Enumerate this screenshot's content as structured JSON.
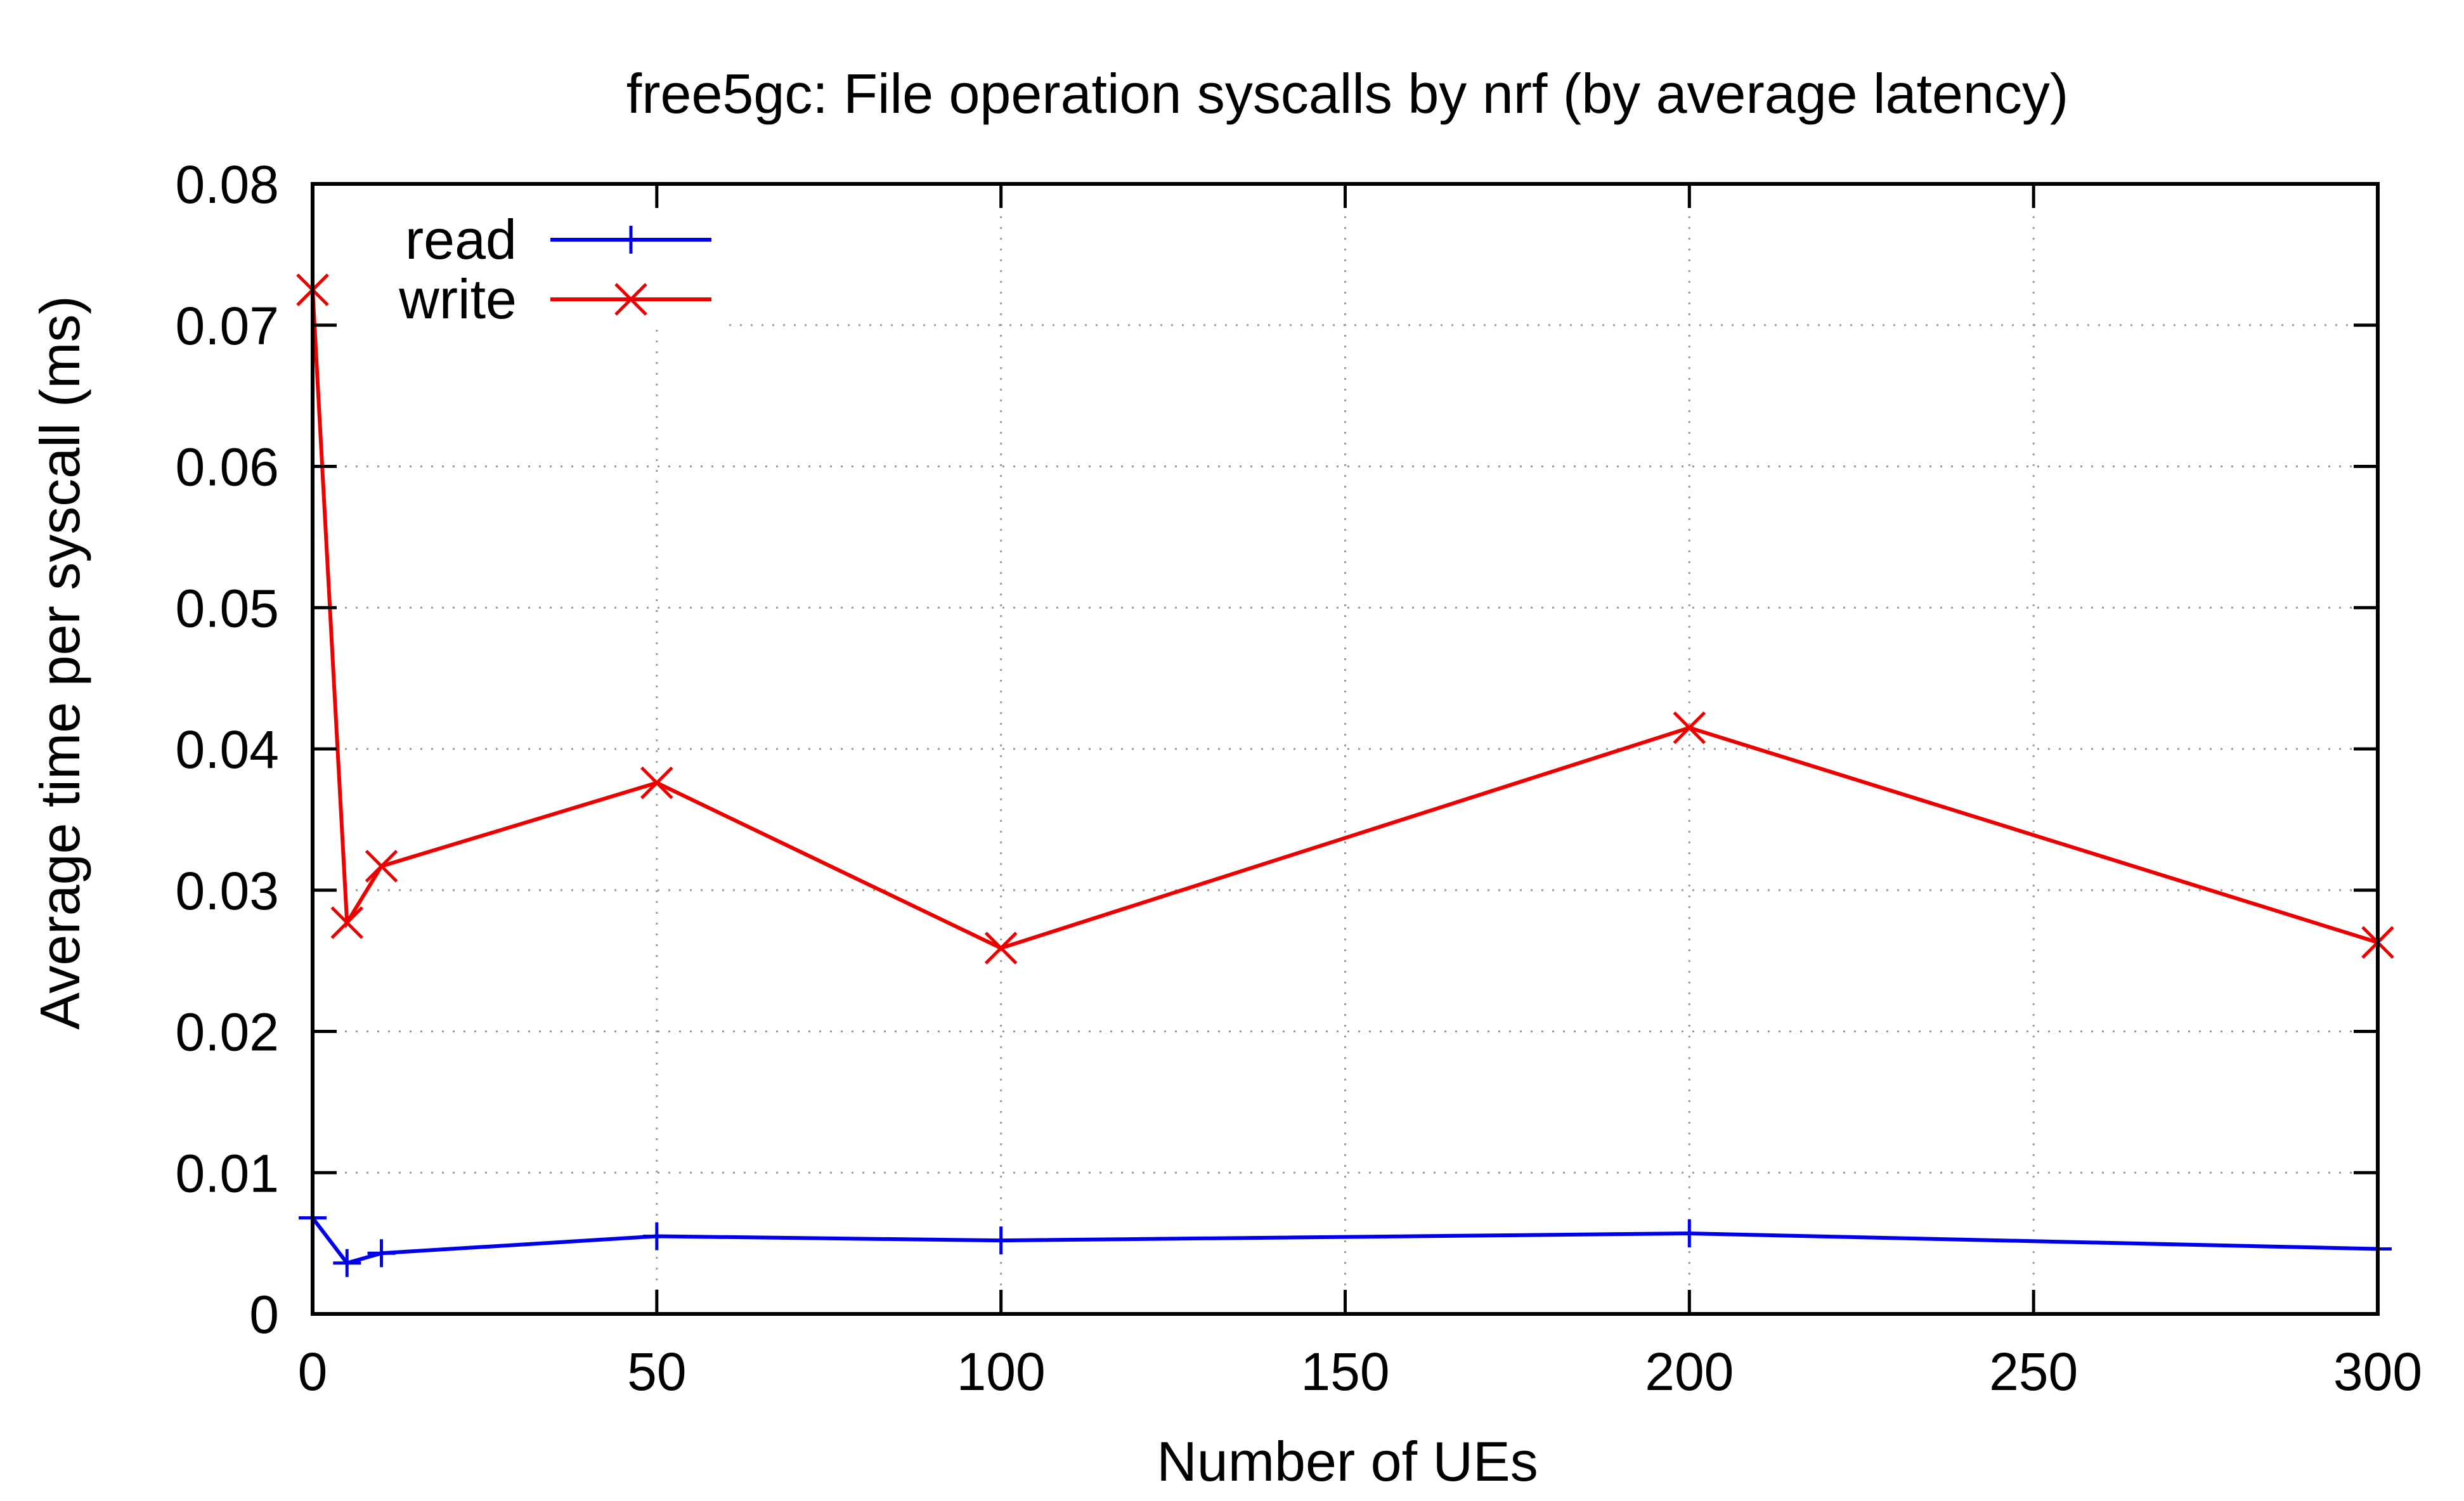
{
  "chart_data": {
    "type": "line",
    "title": "free5gc: File operation syscalls by nrf (by average latency)",
    "xlabel": "Number of UEs",
    "ylabel": "Average time per syscall (ms)",
    "xlim": [
      0,
      300
    ],
    "ylim": [
      0,
      0.08
    ],
    "xticks": [
      0,
      50,
      100,
      150,
      200,
      250,
      300
    ],
    "xtick_labels": [
      "0",
      "50",
      "100",
      "150",
      "200",
      "250",
      "300"
    ],
    "yticks": [
      0,
      0.01,
      0.02,
      0.03,
      0.04,
      0.05,
      0.06,
      0.07,
      0.08
    ],
    "ytick_labels": [
      "0",
      "0.01",
      "0.02",
      "0.03",
      "0.04",
      "0.05",
      "0.06",
      "0.07",
      "0.08"
    ],
    "grid": true,
    "legend_position": "top-left",
    "series": [
      {
        "name": "read",
        "color": "#0000ee",
        "marker": "plus",
        "x": [
          0,
          5,
          10,
          50,
          100,
          200,
          300
        ],
        "y": [
          0.0068,
          0.0036,
          0.0043,
          0.0055,
          0.0052,
          0.0057,
          0.0046
        ]
      },
      {
        "name": "write",
        "color": "#ee0000",
        "marker": "cross",
        "x": [
          0,
          5,
          10,
          50,
          100,
          200,
          300
        ],
        "y": [
          0.0725,
          0.0277,
          0.0317,
          0.0376,
          0.0259,
          0.0415,
          0.0263
        ]
      }
    ]
  }
}
